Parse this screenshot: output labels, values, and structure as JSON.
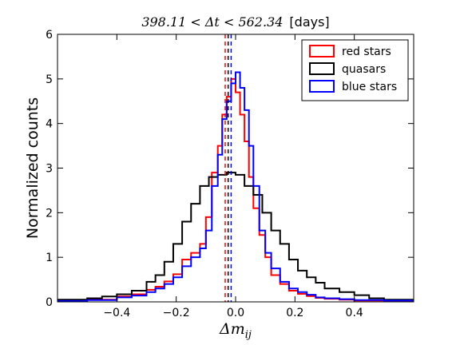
{
  "chart_data": {
    "type": "step-histogram",
    "title": {
      "math": "398.11 < Δt < 562.34",
      "suffix": "[days]"
    },
    "xlabel": "Δm",
    "xlabel_subscript": "ij",
    "ylabel": "Normalized counts",
    "xlim": [
      -0.6,
      0.6
    ],
    "ylim": [
      0,
      6
    ],
    "xticks": [
      -0.4,
      -0.2,
      0.0,
      0.2,
      0.4
    ],
    "xtick_labels": [
      "−0.4",
      "−0.2",
      "0.0",
      "0.2",
      "0.4"
    ],
    "yticks": [
      0,
      1,
      2,
      3,
      4,
      5,
      6
    ],
    "ytick_labels": [
      "0",
      "1",
      "2",
      "3",
      "4",
      "5",
      "6"
    ],
    "legend_position": "top-right",
    "series": [
      {
        "name": "red stars",
        "color": "#ff0000",
        "x": [
          -0.6,
          -0.5,
          -0.4,
          -0.35,
          -0.3,
          -0.27,
          -0.24,
          -0.21,
          -0.18,
          -0.15,
          -0.12,
          -0.1,
          -0.08,
          -0.06,
          -0.045,
          -0.03,
          -0.015,
          0.0,
          0.015,
          0.03,
          0.045,
          0.06,
          0.08,
          0.1,
          0.12,
          0.15,
          0.18,
          0.21,
          0.24,
          0.27,
          0.3,
          0.35,
          0.4,
          0.5,
          0.6
        ],
        "y": [
          0.03,
          0.05,
          0.12,
          0.17,
          0.27,
          0.34,
          0.46,
          0.62,
          0.95,
          1.1,
          1.3,
          1.9,
          2.9,
          3.5,
          4.2,
          4.6,
          5.0,
          4.7,
          4.2,
          3.6,
          2.8,
          2.1,
          1.5,
          1.0,
          0.6,
          0.4,
          0.25,
          0.18,
          0.13,
          0.09,
          0.07,
          0.05,
          0.03,
          0.02,
          0.02
        ]
      },
      {
        "name": "quasars",
        "color": "#000000",
        "x": [
          -0.6,
          -0.5,
          -0.45,
          -0.4,
          -0.35,
          -0.3,
          -0.27,
          -0.24,
          -0.21,
          -0.18,
          -0.15,
          -0.12,
          -0.09,
          -0.06,
          -0.03,
          0.0,
          0.03,
          0.06,
          0.09,
          0.12,
          0.15,
          0.18,
          0.21,
          0.24,
          0.27,
          0.3,
          0.35,
          0.4,
          0.45,
          0.5,
          0.6
        ],
        "y": [
          0.05,
          0.08,
          0.12,
          0.17,
          0.25,
          0.45,
          0.6,
          0.9,
          1.3,
          1.8,
          2.2,
          2.6,
          2.8,
          2.85,
          2.9,
          2.85,
          2.6,
          2.4,
          2.0,
          1.6,
          1.3,
          0.95,
          0.7,
          0.55,
          0.43,
          0.3,
          0.22,
          0.15,
          0.08,
          0.05,
          0.03
        ]
      },
      {
        "name": "blue stars",
        "color": "#0000ff",
        "x": [
          -0.6,
          -0.5,
          -0.4,
          -0.35,
          -0.3,
          -0.27,
          -0.24,
          -0.21,
          -0.18,
          -0.15,
          -0.12,
          -0.1,
          -0.08,
          -0.06,
          -0.045,
          -0.03,
          -0.015,
          0.0,
          0.015,
          0.03,
          0.045,
          0.06,
          0.08,
          0.1,
          0.12,
          0.15,
          0.18,
          0.21,
          0.24,
          0.27,
          0.3,
          0.35,
          0.4,
          0.5,
          0.6
        ],
        "y": [
          0.02,
          0.04,
          0.1,
          0.14,
          0.22,
          0.3,
          0.4,
          0.55,
          0.8,
          1.0,
          1.2,
          1.6,
          2.6,
          3.3,
          4.1,
          4.5,
          4.9,
          5.15,
          4.8,
          4.3,
          3.5,
          2.6,
          1.6,
          1.1,
          0.75,
          0.45,
          0.3,
          0.22,
          0.16,
          0.1,
          0.08,
          0.06,
          0.04,
          0.03,
          0.02
        ]
      }
    ],
    "vlines": [
      {
        "x": -0.035,
        "color": "#ff0000"
      },
      {
        "x": -0.025,
        "color": "#000000"
      },
      {
        "x": -0.015,
        "color": "#0000ff"
      }
    ]
  }
}
